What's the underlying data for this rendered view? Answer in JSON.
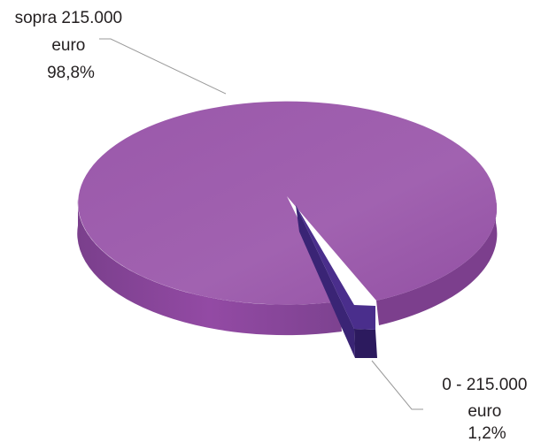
{
  "chart_data": {
    "type": "pie",
    "style": "3d",
    "slices": [
      {
        "label_lines": [
          "sopra 215.000",
          "euro",
          "98,8%"
        ],
        "value": 98.8,
        "color": "#a05fad"
      },
      {
        "label_lines": [
          "0 - 215.000",
          "euro",
          "1,2%"
        ],
        "value": 1.2,
        "color": "#4a2e8c"
      }
    ]
  }
}
